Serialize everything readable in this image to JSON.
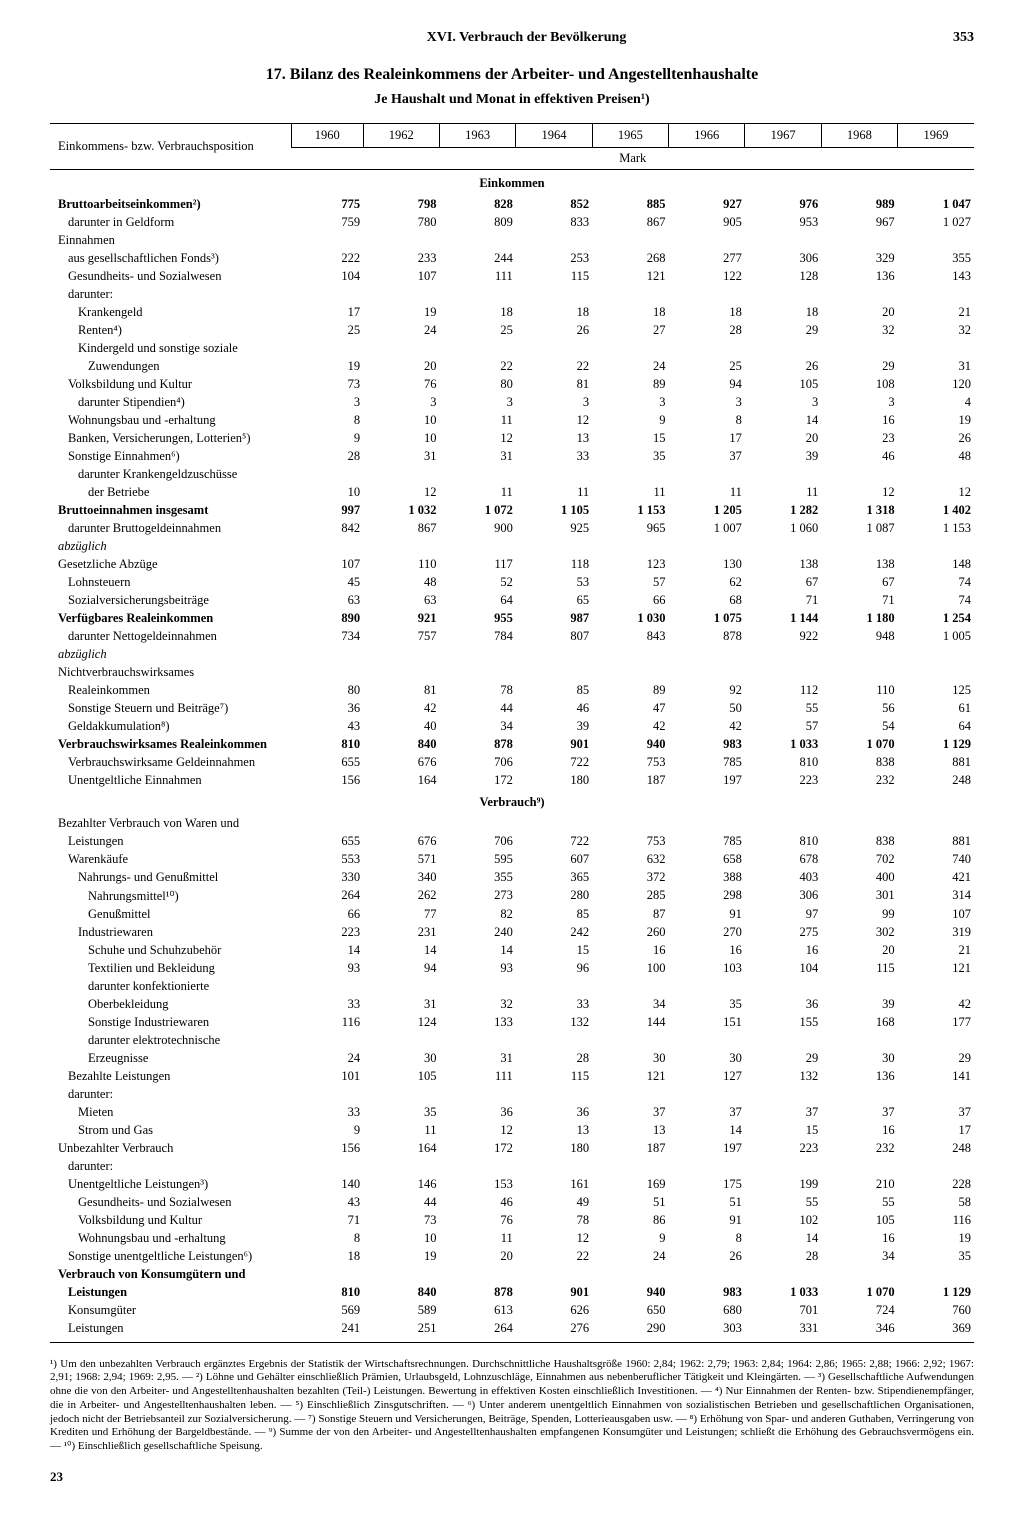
{
  "chapter": "XVI. Verbrauch der Bevölkerung",
  "page": "353",
  "title": "17. Bilanz des Realeinkommens der Arbeiter- und Angestelltenhaushalte",
  "subtitle": "Je Haushalt und Monat in effektiven Preisen¹)",
  "row_header": "Einkommens- bzw. Verbrauchsposition",
  "years": [
    "1960",
    "1962",
    "1963",
    "1964",
    "1965",
    "1966",
    "1967",
    "1968",
    "1969"
  ],
  "unit": "Mark",
  "section1": "Einkommen",
  "section2": "Verbrauch⁹)",
  "rows": [
    {
      "l": "Bruttoarbeitseinkommen²)",
      "i": 0,
      "b": 1,
      "v": [
        "775",
        "798",
        "828",
        "852",
        "885",
        "927",
        "976",
        "989",
        "1 047"
      ]
    },
    {
      "l": "darunter in Geldform",
      "i": 1,
      "v": [
        "759",
        "780",
        "809",
        "833",
        "867",
        "905",
        "953",
        "967",
        "1 027"
      ]
    },
    {
      "l": "Einnahmen",
      "i": 0,
      "v": [
        "",
        "",
        "",
        "",
        "",
        "",
        "",
        "",
        ""
      ]
    },
    {
      "l": "aus gesellschaftlichen Fonds³)",
      "i": 1,
      "v": [
        "222",
        "233",
        "244",
        "253",
        "268",
        "277",
        "306",
        "329",
        "355"
      ]
    },
    {
      "l": "Gesundheits- und Sozialwesen",
      "i": 1,
      "v": [
        "104",
        "107",
        "111",
        "115",
        "121",
        "122",
        "128",
        "136",
        "143"
      ]
    },
    {
      "l": "darunter:",
      "i": 1,
      "v": [
        "",
        "",
        "",
        "",
        "",
        "",
        "",
        "",
        ""
      ]
    },
    {
      "l": "Krankengeld",
      "i": 2,
      "v": [
        "17",
        "19",
        "18",
        "18",
        "18",
        "18",
        "18",
        "20",
        "21"
      ]
    },
    {
      "l": "Renten⁴)",
      "i": 2,
      "v": [
        "25",
        "24",
        "25",
        "26",
        "27",
        "28",
        "29",
        "32",
        "32"
      ]
    },
    {
      "l": "Kindergeld und sonstige soziale",
      "i": 2,
      "v": [
        "",
        "",
        "",
        "",
        "",
        "",
        "",
        "",
        ""
      ]
    },
    {
      "l": "Zuwendungen",
      "i": 3,
      "v": [
        "19",
        "20",
        "22",
        "22",
        "24",
        "25",
        "26",
        "29",
        "31"
      ]
    },
    {
      "l": "Volksbildung und Kultur",
      "i": 1,
      "v": [
        "73",
        "76",
        "80",
        "81",
        "89",
        "94",
        "105",
        "108",
        "120"
      ]
    },
    {
      "l": "darunter Stipendien⁴)",
      "i": 2,
      "v": [
        "3",
        "3",
        "3",
        "3",
        "3",
        "3",
        "3",
        "3",
        "4"
      ]
    },
    {
      "l": "Wohnungsbau und -erhaltung",
      "i": 1,
      "v": [
        "8",
        "10",
        "11",
        "12",
        "9",
        "8",
        "14",
        "16",
        "19"
      ]
    },
    {
      "l": "Banken, Versicherungen, Lotterien⁵)",
      "i": 1,
      "v": [
        "9",
        "10",
        "12",
        "13",
        "15",
        "17",
        "20",
        "23",
        "26"
      ]
    },
    {
      "l": "Sonstige Einnahmen⁶)",
      "i": 1,
      "v": [
        "28",
        "31",
        "31",
        "33",
        "35",
        "37",
        "39",
        "46",
        "48"
      ]
    },
    {
      "l": "darunter Krankengeldzuschüsse",
      "i": 2,
      "v": [
        "",
        "",
        "",
        "",
        "",
        "",
        "",
        "",
        ""
      ]
    },
    {
      "l": "der Betriebe",
      "i": 3,
      "v": [
        "10",
        "12",
        "11",
        "11",
        "11",
        "11",
        "11",
        "12",
        "12"
      ]
    },
    {
      "l": "Bruttoeinnahmen insgesamt",
      "i": 0,
      "b": 1,
      "v": [
        "997",
        "1 032",
        "1 072",
        "1 105",
        "1 153",
        "1 205",
        "1 282",
        "1 318",
        "1 402"
      ]
    },
    {
      "l": "darunter Bruttogeldeinnahmen",
      "i": 1,
      "v": [
        "842",
        "867",
        "900",
        "925",
        "965",
        "1 007",
        "1 060",
        "1 087",
        "1 153"
      ]
    },
    {
      "l": "abzüglich",
      "i": 0,
      "it": 1,
      "v": [
        "",
        "",
        "",
        "",
        "",
        "",
        "",
        "",
        ""
      ]
    },
    {
      "l": "Gesetzliche Abzüge",
      "i": 0,
      "v": [
        "107",
        "110",
        "117",
        "118",
        "123",
        "130",
        "138",
        "138",
        "148"
      ]
    },
    {
      "l": "Lohnsteuern",
      "i": 1,
      "v": [
        "45",
        "48",
        "52",
        "53",
        "57",
        "62",
        "67",
        "67",
        "74"
      ]
    },
    {
      "l": "Sozialversicherungsbeiträge",
      "i": 1,
      "v": [
        "63",
        "63",
        "64",
        "65",
        "66",
        "68",
        "71",
        "71",
        "74"
      ]
    },
    {
      "l": "Verfügbares Realeinkommen",
      "i": 0,
      "b": 1,
      "v": [
        "890",
        "921",
        "955",
        "987",
        "1 030",
        "1 075",
        "1 144",
        "1 180",
        "1 254"
      ]
    },
    {
      "l": "darunter Nettogeldeinnahmen",
      "i": 1,
      "v": [
        "734",
        "757",
        "784",
        "807",
        "843",
        "878",
        "922",
        "948",
        "1 005"
      ]
    },
    {
      "l": "abzüglich",
      "i": 0,
      "it": 1,
      "v": [
        "",
        "",
        "",
        "",
        "",
        "",
        "",
        "",
        ""
      ]
    },
    {
      "l": "Nichtverbrauchswirksames",
      "i": 0,
      "v": [
        "",
        "",
        "",
        "",
        "",
        "",
        "",
        "",
        ""
      ]
    },
    {
      "l": "Realeinkommen",
      "i": 1,
      "v": [
        "80",
        "81",
        "78",
        "85",
        "89",
        "92",
        "112",
        "110",
        "125"
      ]
    },
    {
      "l": "Sonstige Steuern und Beiträge⁷)",
      "i": 1,
      "v": [
        "36",
        "42",
        "44",
        "46",
        "47",
        "50",
        "55",
        "56",
        "61"
      ]
    },
    {
      "l": "Geldakkumulation⁸)",
      "i": 1,
      "v": [
        "43",
        "40",
        "34",
        "39",
        "42",
        "42",
        "57",
        "54",
        "64"
      ]
    },
    {
      "l": "Verbrauchswirksames Realeinkommen",
      "i": 0,
      "b": 1,
      "v": [
        "810",
        "840",
        "878",
        "901",
        "940",
        "983",
        "1 033",
        "1 070",
        "1 129"
      ]
    },
    {
      "l": "Verbrauchswirksame Geldeinnahmen",
      "i": 1,
      "v": [
        "655",
        "676",
        "706",
        "722",
        "753",
        "785",
        "810",
        "838",
        "881"
      ]
    },
    {
      "l": "Unentgeltliche Einnahmen",
      "i": 1,
      "v": [
        "156",
        "164",
        "172",
        "180",
        "187",
        "197",
        "223",
        "232",
        "248"
      ]
    }
  ],
  "rows2": [
    {
      "l": "Bezahlter Verbrauch von Waren und",
      "i": 0,
      "v": [
        "",
        "",
        "",
        "",
        "",
        "",
        "",
        "",
        ""
      ]
    },
    {
      "l": "Leistungen",
      "i": 1,
      "v": [
        "655",
        "676",
        "706",
        "722",
        "753",
        "785",
        "810",
        "838",
        "881"
      ]
    },
    {
      "l": "Warenkäufe",
      "i": 1,
      "v": [
        "553",
        "571",
        "595",
        "607",
        "632",
        "658",
        "678",
        "702",
        "740"
      ]
    },
    {
      "l": "Nahrungs- und Genußmittel",
      "i": 2,
      "v": [
        "330",
        "340",
        "355",
        "365",
        "372",
        "388",
        "403",
        "400",
        "421"
      ]
    },
    {
      "l": "Nahrungsmittel¹⁰)",
      "i": 3,
      "v": [
        "264",
        "262",
        "273",
        "280",
        "285",
        "298",
        "306",
        "301",
        "314"
      ]
    },
    {
      "l": "Genußmittel",
      "i": 3,
      "v": [
        "66",
        "77",
        "82",
        "85",
        "87",
        "91",
        "97",
        "99",
        "107"
      ]
    },
    {
      "l": "Industriewaren",
      "i": 2,
      "v": [
        "223",
        "231",
        "240",
        "242",
        "260",
        "270",
        "275",
        "302",
        "319"
      ]
    },
    {
      "l": "Schuhe und Schuhzubehör",
      "i": 3,
      "v": [
        "14",
        "14",
        "14",
        "15",
        "16",
        "16",
        "16",
        "20",
        "21"
      ]
    },
    {
      "l": "Textilien und Bekleidung",
      "i": 3,
      "v": [
        "93",
        "94",
        "93",
        "96",
        "100",
        "103",
        "104",
        "115",
        "121"
      ]
    },
    {
      "l": "darunter konfektionierte",
      "i": 3,
      "v": [
        "",
        "",
        "",
        "",
        "",
        "",
        "",
        "",
        ""
      ]
    },
    {
      "l": "Oberbekleidung",
      "i": 3,
      "v": [
        "33",
        "31",
        "32",
        "33",
        "34",
        "35",
        "36",
        "39",
        "42"
      ]
    },
    {
      "l": "Sonstige Industriewaren",
      "i": 3,
      "v": [
        "116",
        "124",
        "133",
        "132",
        "144",
        "151",
        "155",
        "168",
        "177"
      ]
    },
    {
      "l": "darunter elektrotechnische",
      "i": 3,
      "v": [
        "",
        "",
        "",
        "",
        "",
        "",
        "",
        "",
        ""
      ]
    },
    {
      "l": "Erzeugnisse",
      "i": 3,
      "v": [
        "24",
        "30",
        "31",
        "28",
        "30",
        "30",
        "29",
        "30",
        "29"
      ]
    },
    {
      "l": "Bezahlte Leistungen",
      "i": 1,
      "v": [
        "101",
        "105",
        "111",
        "115",
        "121",
        "127",
        "132",
        "136",
        "141"
      ]
    },
    {
      "l": "darunter:",
      "i": 1,
      "v": [
        "",
        "",
        "",
        "",
        "",
        "",
        "",
        "",
        ""
      ]
    },
    {
      "l": "Mieten",
      "i": 2,
      "v": [
        "33",
        "35",
        "36",
        "36",
        "37",
        "37",
        "37",
        "37",
        "37"
      ]
    },
    {
      "l": "Strom und Gas",
      "i": 2,
      "v": [
        "9",
        "11",
        "12",
        "13",
        "13",
        "14",
        "15",
        "16",
        "17"
      ]
    },
    {
      "l": "Unbezahlter Verbrauch",
      "i": 0,
      "v": [
        "156",
        "164",
        "172",
        "180",
        "187",
        "197",
        "223",
        "232",
        "248"
      ]
    },
    {
      "l": "darunter:",
      "i": 1,
      "v": [
        "",
        "",
        "",
        "",
        "",
        "",
        "",
        "",
        ""
      ]
    },
    {
      "l": "Unentgeltliche Leistungen³)",
      "i": 1,
      "v": [
        "140",
        "146",
        "153",
        "161",
        "169",
        "175",
        "199",
        "210",
        "228"
      ]
    },
    {
      "l": "Gesundheits- und Sozialwesen",
      "i": 2,
      "v": [
        "43",
        "44",
        "46",
        "49",
        "51",
        "51",
        "55",
        "55",
        "58"
      ]
    },
    {
      "l": "Volksbildung und Kultur",
      "i": 2,
      "v": [
        "71",
        "73",
        "76",
        "78",
        "86",
        "91",
        "102",
        "105",
        "116"
      ]
    },
    {
      "l": "Wohnungsbau und -erhaltung",
      "i": 2,
      "v": [
        "8",
        "10",
        "11",
        "12",
        "9",
        "8",
        "14",
        "16",
        "19"
      ]
    },
    {
      "l": "Sonstige unentgeltliche Leistungen⁶)",
      "i": 1,
      "v": [
        "18",
        "19",
        "20",
        "22",
        "24",
        "26",
        "28",
        "34",
        "35"
      ]
    },
    {
      "l": "Verbrauch von Konsumgütern und",
      "i": 0,
      "b": 1,
      "v": [
        "",
        "",
        "",
        "",
        "",
        "",
        "",
        "",
        ""
      ]
    },
    {
      "l": "Leistungen",
      "i": 1,
      "b": 1,
      "v": [
        "810",
        "840",
        "878",
        "901",
        "940",
        "983",
        "1 033",
        "1 070",
        "1 129"
      ]
    },
    {
      "l": "Konsumgüter",
      "i": 1,
      "v": [
        "569",
        "589",
        "613",
        "626",
        "650",
        "680",
        "701",
        "724",
        "760"
      ]
    },
    {
      "l": "Leistungen",
      "i": 1,
      "v": [
        "241",
        "251",
        "264",
        "276",
        "290",
        "303",
        "331",
        "346",
        "369"
      ]
    }
  ],
  "footnotes": "¹) Um den unbezahlten Verbrauch ergänztes Ergebnis der Statistik der Wirtschaftsrechnungen. Durchschnittliche Haushaltsgröße 1960: 2,84; 1962: 2,79; 1963: 2,84; 1964: 2,86; 1965: 2,88; 1966: 2,92; 1967: 2,91; 1968: 2,94; 1969: 2,95. — ²) Löhne und Gehälter einschließlich Prämien, Urlaubsgeld, Lohnzuschläge, Einnahmen aus nebenberuflicher Tätigkeit und Kleingärten. — ³) Gesellschaftliche Aufwendungen ohne die von den Arbeiter- und Angestelltenhaushalten bezahlten (Teil-) Leistungen. Bewertung in effektiven Kosten einschließlich Investitionen. — ⁴) Nur Einnahmen der Renten- bzw. Stipendienempfänger, die in Arbeiter- und Angestelltenhaushalten leben. — ⁵) Einschließlich Zinsgutschriften. — ⁶) Unter anderem unentgeltlich Einnahmen von sozialistischen Betrieben und gesellschaftlichen Organisationen, jedoch nicht der Betriebsanteil zur Sozialversicherung. — ⁷) Sonstige Steuern und Versicherungen, Beiträge, Spenden, Lotterieausgaben usw. — ⁸) Erhöhung von Spar- und anderen Guthaben, Verringerung von Krediten und Erhöhung der Bargeldbestände. — ⁹) Summe der von den Arbeiter- und Angestelltenhaushalten empfangenen Konsumgüter und Leistungen; schließt die Erhöhung des Gebrauchsvermögens ein. — ¹⁰) Einschließlich gesellschaftliche Speisung.",
  "page_foot": "23"
}
